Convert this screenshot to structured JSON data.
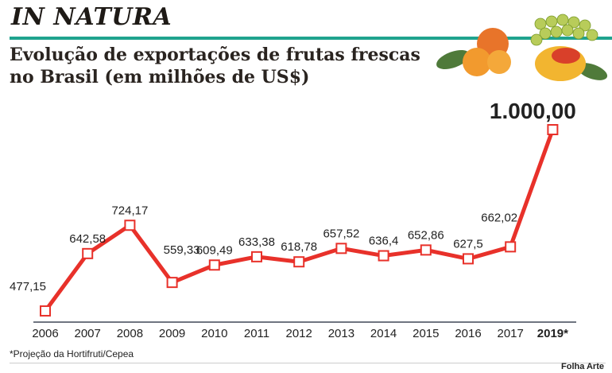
{
  "header": {
    "kicker": "IN NATURA",
    "title_line1": "Evolução de exportações de frutas frescas",
    "title_line2": "no Brasil (em milhões de US$)"
  },
  "chart_data": {
    "type": "line",
    "title": "Evolução de exportações de frutas frescas no Brasil (em milhões de US$)",
    "xlabel": "",
    "ylabel": "milhões de US$",
    "categories": [
      "2006",
      "2007",
      "2008",
      "2009",
      "2010",
      "2011",
      "2012",
      "2013",
      "2014",
      "2015",
      "2016",
      "2017",
      "2019*"
    ],
    "series": [
      {
        "name": "Exportações",
        "values": [
          477.15,
          642.58,
          724.17,
          559.33,
          609.49,
          633.38,
          618.78,
          657.52,
          636.4,
          652.86,
          627.5,
          662.02,
          1000.0
        ],
        "labels": [
          "477,15",
          "642,58",
          "724,17",
          "559,33",
          "609,49",
          "633,38",
          "618,78",
          "657,52",
          "636,4",
          "652,86",
          "627,5",
          "662,02",
          "1.000,00"
        ],
        "color": "#e8312a"
      }
    ],
    "grid": false,
    "legend": "none"
  },
  "footnote": "*Projeção da Hortifruti/Cepea",
  "credit": "Folha Arte"
}
